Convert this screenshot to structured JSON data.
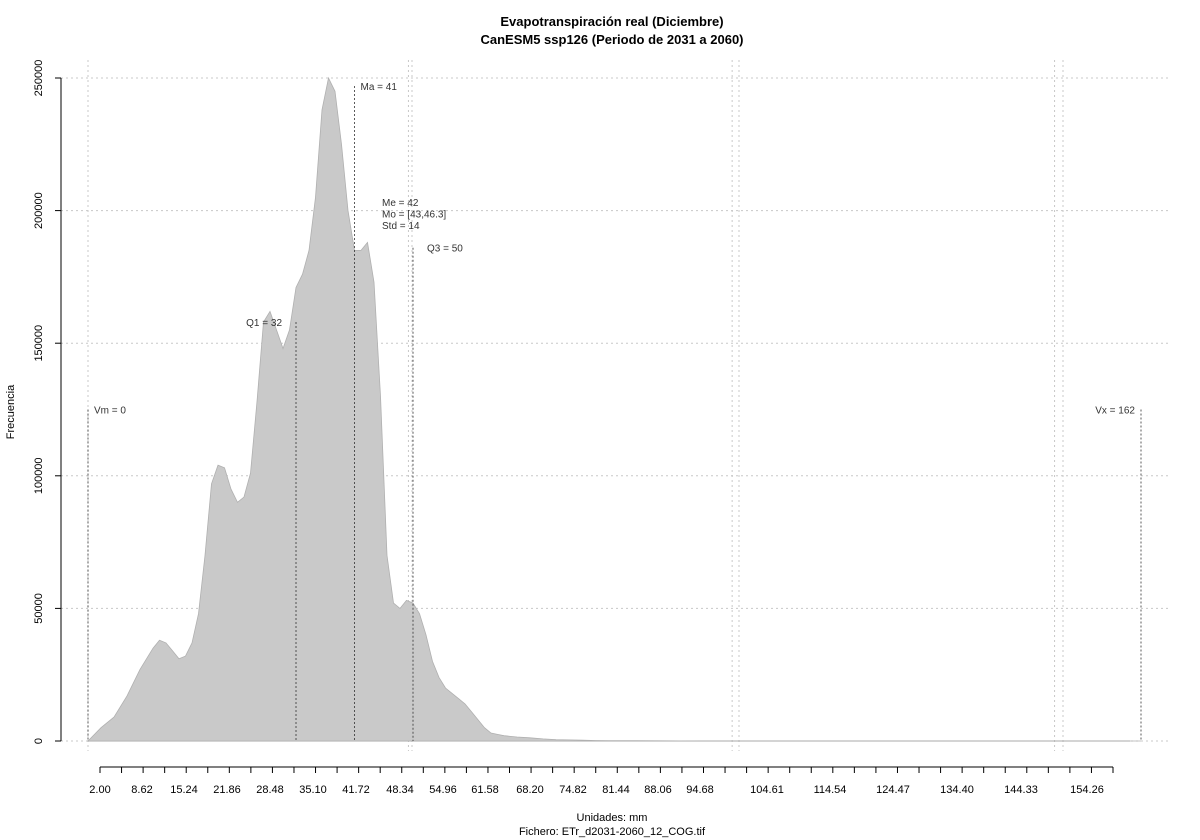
{
  "chart_data": {
    "type": "area",
    "title": "Evapotranspiración real (Diciembre)",
    "subtitle": "CanESM5 ssp126 (Periodo de 2031 a 2060)",
    "xlabel": "Unidades: mm",
    "ylabel": "Frecuencia",
    "caption": "Fichero: ETr_d2031-2060_12_COG.tif",
    "xlim": [
      0,
      163
    ],
    "ylim": [
      0,
      250000
    ],
    "grid": true,
    "x_ticks": [
      "2.00",
      "8.62",
      "15.24",
      "21.86",
      "28.48",
      "35.10",
      "41.72",
      "48.34",
      "54.96",
      "61.58",
      "68.20",
      "74.82",
      "81.44",
      "88.06",
      "94.68",
      "104.61",
      "114.54",
      "124.47",
      "134.40",
      "144.33",
      "154.26"
    ],
    "y_ticks": [
      "0",
      "50000",
      "100000",
      "150000",
      "200000",
      "250000"
    ],
    "fill_color": "#c9c9c9",
    "x": [
      0,
      2,
      4,
      6,
      8,
      10,
      11,
      12,
      13,
      14,
      15,
      16,
      17,
      18,
      19,
      20,
      21,
      22,
      23,
      24,
      25,
      26,
      27,
      28,
      29,
      30,
      31,
      32,
      33,
      34,
      35,
      36,
      37,
      38,
      39,
      40,
      41,
      42,
      43,
      44,
      45,
      46,
      47,
      48,
      49,
      50,
      51,
      52,
      53,
      54,
      55,
      56,
      57,
      58,
      59,
      60,
      61,
      62,
      63,
      64,
      66,
      68,
      70,
      72,
      74,
      76,
      78,
      80,
      84,
      88,
      91,
      94,
      96,
      100,
      110,
      130,
      150,
      162
    ],
    "values": [
      0,
      5000,
      9000,
      17000,
      27000,
      35000,
      38000,
      37000,
      34000,
      31000,
      32000,
      37000,
      48000,
      70000,
      97000,
      104000,
      103000,
      95000,
      90000,
      92000,
      101000,
      128000,
      158000,
      162000,
      155000,
      148000,
      155000,
      171000,
      176000,
      185000,
      205000,
      238000,
      250000,
      245000,
      225000,
      200000,
      185000,
      185000,
      188000,
      173000,
      130000,
      70000,
      52000,
      50000,
      53000,
      52000,
      48000,
      40000,
      30000,
      24000,
      20000,
      18000,
      16000,
      14000,
      11000,
      8000,
      5000,
      3000,
      2500,
      2000,
      1500,
      1200,
      800,
      500,
      400,
      300,
      200,
      150,
      100,
      60,
      30,
      10,
      0,
      0,
      0,
      0,
      0,
      0
    ],
    "vlines": [
      {
        "x": 0,
        "label": "Vm = 0",
        "top": 125000
      },
      {
        "x": 32,
        "label": "Q1 = 32",
        "top": 158000
      },
      {
        "x": 41,
        "label": "Ma = 41",
        "top": 247000
      },
      {
        "x": 50,
        "label": "Q3 = 50",
        "top": 186000
      },
      {
        "x": 162,
        "label": "Vx = 162",
        "top": 125000
      }
    ],
    "stats_annotation": [
      "Me = 42",
      "Mo = [43,46.3]",
      "Std = 14"
    ]
  }
}
